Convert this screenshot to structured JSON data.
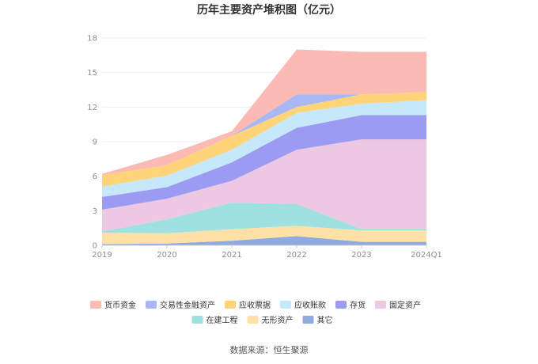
{
  "chart_data": {
    "type": "area",
    "stacked": true,
    "title": "历年主要资产堆积图（亿元）",
    "categories": [
      "2019",
      "2020",
      "2021",
      "2022",
      "2023",
      "2024Q1"
    ],
    "ylim": [
      0,
      18
    ],
    "yticks": [
      "0",
      "3",
      "6",
      "9",
      "12",
      "15",
      "18"
    ],
    "grid": "horizontal",
    "legend_position": "bottom",
    "series": [
      {
        "name": "其它",
        "color": "#8faadc",
        "values": [
          0.1,
          0.15,
          0.4,
          0.8,
          0.3,
          0.3
        ]
      },
      {
        "name": "无形资产",
        "color": "#ffe0a6",
        "values": [
          1.0,
          0.9,
          1.0,
          0.9,
          1.0,
          1.0
        ]
      },
      {
        "name": "在建工程",
        "color": "#9fe0e0",
        "values": [
          0.1,
          1.2,
          2.3,
          1.9,
          0.1,
          0.1
        ]
      },
      {
        "name": "固定资产",
        "color": "#ecc8e2",
        "values": [
          1.9,
          1.8,
          1.9,
          4.7,
          7.8,
          7.8
        ]
      },
      {
        "name": "存货",
        "color": "#9b9bf2",
        "values": [
          1.1,
          1.0,
          1.6,
          1.9,
          2.1,
          2.1
        ]
      },
      {
        "name": "应收账款",
        "color": "#c5e8fa",
        "values": [
          0.9,
          1.0,
          1.1,
          1.3,
          1.0,
          1.3
        ]
      },
      {
        "name": "应收票据",
        "color": "#ffd479",
        "values": [
          1.0,
          0.9,
          1.2,
          0.5,
          0.8,
          0.7
        ]
      },
      {
        "name": "交易性金融资产",
        "color": "#a9b8f5",
        "values": [
          0.0,
          0.0,
          0.0,
          1.1,
          0.0,
          0.0
        ]
      },
      {
        "name": "货币资金",
        "color": "#fbbab4",
        "values": [
          0.1,
          0.9,
          0.4,
          3.9,
          3.7,
          3.5
        ]
      }
    ],
    "legend_order": [
      "货币资金",
      "交易性金融资产",
      "应收票据",
      "应收账款",
      "存货",
      "固定资产",
      "在建工程",
      "无形资产",
      "其它"
    ]
  },
  "source_text": "数据来源：恒生聚源",
  "colors": {
    "axis": "#cccccc",
    "grid": "#eeeeee"
  }
}
